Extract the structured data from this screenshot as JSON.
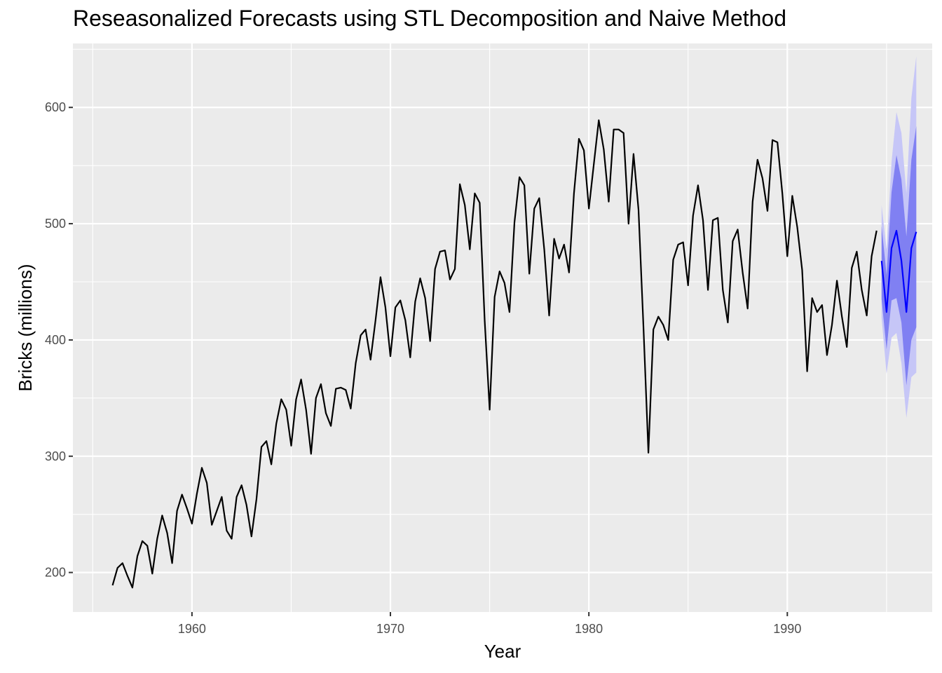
{
  "chart_data": {
    "type": "line",
    "title": "Reseasonalized Forecasts using STL Decomposition and Naive Method",
    "xlabel": "Year",
    "ylabel": "Bricks (millions)",
    "xlim": [
      1954.0,
      1997.3
    ],
    "ylim": [
      166,
      655
    ],
    "x_ticks": [
      1960,
      1970,
      1980,
      1990
    ],
    "y_ticks": [
      200,
      300,
      400,
      500,
      600
    ],
    "grid": true,
    "legend": "none",
    "colors": {
      "panel": "#ebebeb",
      "grid": "#ffffff",
      "history": "#000000",
      "forecast": "#0000ff",
      "band_80": "#8080f2",
      "band_95": "#c6c6f7"
    },
    "series": [
      {
        "role": "history",
        "start": 1956.0,
        "step": 0.25,
        "values": [
          189,
          204,
          208,
          197,
          187,
          214,
          227,
          223,
          199,
          229,
          249,
          234,
          208,
          253,
          267,
          255,
          242,
          268,
          290,
          277,
          241,
          253,
          265,
          236,
          229,
          265,
          275,
          258,
          231,
          263,
          308,
          313,
          293,
          328,
          349,
          340,
          309,
          349,
          366,
          340,
          302,
          350,
          362,
          337,
          326,
          358,
          359,
          357,
          341,
          380,
          404,
          409,
          383,
          417,
          454,
          428,
          386,
          428,
          434,
          417,
          385,
          433,
          453,
          436,
          399,
          461,
          476,
          477,
          452,
          461,
          534,
          516,
          478,
          526,
          518,
          417,
          340,
          437,
          459,
          449,
          424,
          501,
          540,
          533,
          457,
          513,
          522,
          478,
          421,
          487,
          470,
          482,
          458,
          526,
          573,
          563,
          513,
          551,
          589,
          564,
          519,
          581,
          581,
          578,
          500,
          560,
          512,
          412,
          303,
          409,
          420,
          413,
          400,
          469,
          482,
          484,
          447,
          507,
          533,
          503,
          443,
          503,
          505,
          443,
          415,
          485,
          495,
          458,
          427,
          519,
          555,
          539,
          511,
          572,
          570,
          526,
          472,
          524,
          497,
          460,
          373,
          436,
          424,
          430,
          387,
          413,
          451,
          420,
          394,
          462,
          476,
          443,
          421,
          472,
          494
        ]
      },
      {
        "role": "forecast",
        "start": 1994.75,
        "step": 0.25,
        "values": [
          468,
          424,
          479,
          494,
          468,
          424,
          479,
          493
        ],
        "lower_80": [
          435,
          392,
          434,
          436,
          415,
          361,
          400,
          411
        ],
        "upper_80": [
          498,
          456,
          527,
          559,
          538,
          489,
          555,
          584
        ],
        "lower_95": [
          419,
          371,
          402,
          406,
          380,
          333,
          368,
          372
        ],
        "upper_95": [
          516,
          478,
          553,
          596,
          578,
          526,
          608,
          644
        ]
      }
    ]
  }
}
